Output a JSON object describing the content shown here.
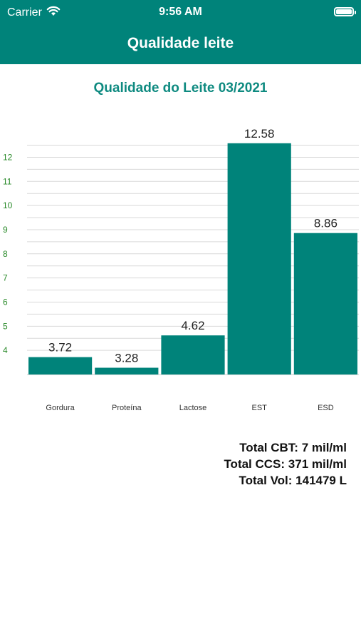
{
  "status_bar": {
    "carrier": "Carrier",
    "time": "9:56 AM",
    "wifi_icon": "wifi-icon",
    "battery_icon": "battery-icon"
  },
  "nav": {
    "title": "Qualidade leite"
  },
  "colors": {
    "primary": "#00837a",
    "bar": "#00837a",
    "axis_text": "#2a8a2a",
    "title_text": "#0e8a80"
  },
  "chart_data": {
    "type": "bar",
    "title": "Qualidade do Leite 03/2021",
    "categories": [
      "Gordura",
      "Proteína",
      "Lactose",
      "EST",
      "ESD"
    ],
    "values": [
      3.72,
      3.28,
      4.62,
      12.58,
      8.86
    ],
    "value_labels": [
      "3.72",
      "3.28",
      "4.62",
      "12.58",
      "8.86"
    ],
    "yticks": [
      4,
      5,
      6,
      7,
      8,
      9,
      10,
      11,
      12
    ],
    "ylim": [
      3,
      12.9
    ],
    "grid": true,
    "xlabel": "",
    "ylabel": ""
  },
  "totals": {
    "cbt": "Total CBT: 7 mil/ml",
    "ccs": "Total CCS: 371 mil/ml",
    "vol": "Total Vol: 141479 L"
  }
}
